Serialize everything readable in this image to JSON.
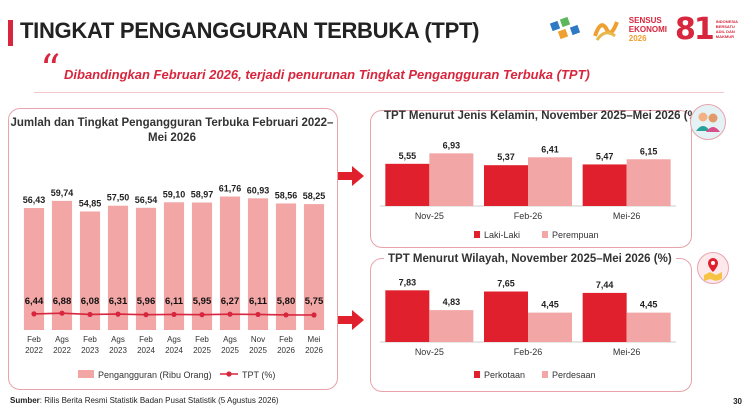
{
  "header": {
    "title": "TINGKAT PENGANGGURAN TERBUKA (TPT)",
    "sensus_logo_text": [
      "SENSUS",
      "EKONOMI",
      "2026"
    ],
    "anniversary_number": "81",
    "anniversary_text": [
      "INDONESIA",
      "BERSATU",
      "ADIL DAN",
      "MAKMUR"
    ]
  },
  "highlight": {
    "quote_mark": "“",
    "text": "Dibandingkan Februari 2026, terjadi penurunan Tingkat Pengangguran Terbuka (TPT)"
  },
  "colors": {
    "accent": "#d7263d",
    "bar_light": "#f2a6a6",
    "bar_dark": "#e0202c",
    "panel_border": "#e8a3ac"
  },
  "chart_data": [
    {
      "type": "bar",
      "title": "Jumlah dan Tingkat Pengangguran Terbuka Februari 2022–Mei 2026",
      "categories": [
        "Feb 2022",
        "Ags 2022",
        "Feb 2023",
        "Ags 2023",
        "Feb 2024",
        "Ags 2024",
        "Feb 2025",
        "Ags 2025",
        "Nov 2025",
        "Feb 2026",
        "Mei 2026"
      ],
      "series": [
        {
          "name": "Pengangguran (Ribu Orang)",
          "type": "bar",
          "values": [
            56.43,
            59.74,
            54.85,
            57.5,
            56.54,
            59.1,
            58.97,
            61.76,
            60.93,
            58.56,
            58.25
          ],
          "labels": [
            "56,43",
            "59,74",
            "54,85",
            "57,50",
            "56,54",
            "59,10",
            "58,97",
            "61,76",
            "60,93",
            "58,56",
            "58,25"
          ]
        },
        {
          "name": "TPT (%)",
          "type": "line",
          "values": [
            6.44,
            6.88,
            6.08,
            6.31,
            5.96,
            6.11,
            5.95,
            6.27,
            6.11,
            5.8,
            5.75
          ],
          "labels": [
            "6,44",
            "6,88",
            "6,08",
            "6,31",
            "5,96",
            "6,11",
            "5,95",
            "6,27",
            "6,11",
            "5,80",
            "5,75"
          ]
        }
      ],
      "legend_position": "bottom"
    },
    {
      "type": "bar",
      "title": "TPT Menurut Jenis Kelamin, November 2025–Mei 2026 (%)",
      "categories": [
        "Nov-25",
        "Feb-26",
        "Mei-26"
      ],
      "series": [
        {
          "name": "Laki-Laki",
          "values": [
            5.55,
            5.37,
            5.47
          ],
          "labels": [
            "5,55",
            "5,37",
            "5,47"
          ]
        },
        {
          "name": "Perempuan",
          "values": [
            6.93,
            6.41,
            6.15
          ],
          "labels": [
            "6,93",
            "6,41",
            "6,15"
          ]
        }
      ],
      "legend_position": "bottom"
    },
    {
      "type": "bar",
      "title": "TPT Menurut Wilayah, November 2025–Mei 2026 (%)",
      "categories": [
        "Nov-25",
        "Feb-26",
        "Mei-26"
      ],
      "series": [
        {
          "name": "Perkotaan",
          "values": [
            7.83,
            7.65,
            7.44
          ],
          "labels": [
            "7,83",
            "7,65",
            "7,44"
          ]
        },
        {
          "name": "Perdesaan",
          "values": [
            4.83,
            4.45,
            4.45
          ],
          "labels": [
            "4,83",
            "4,45",
            "4,45"
          ]
        }
      ],
      "legend_position": "bottom"
    }
  ],
  "footer": {
    "source_label": "Sumber",
    "source_text": ": Rilis Berita Resmi Statistik Badan Pusat Statistik (5 Agustus 2026)",
    "page_number": "30"
  },
  "icons": {
    "people": "people-icon",
    "map_pin": "map-pin-icon",
    "arrow": "arrow-right-icon",
    "bps_logo": "bps-logo-icon"
  }
}
